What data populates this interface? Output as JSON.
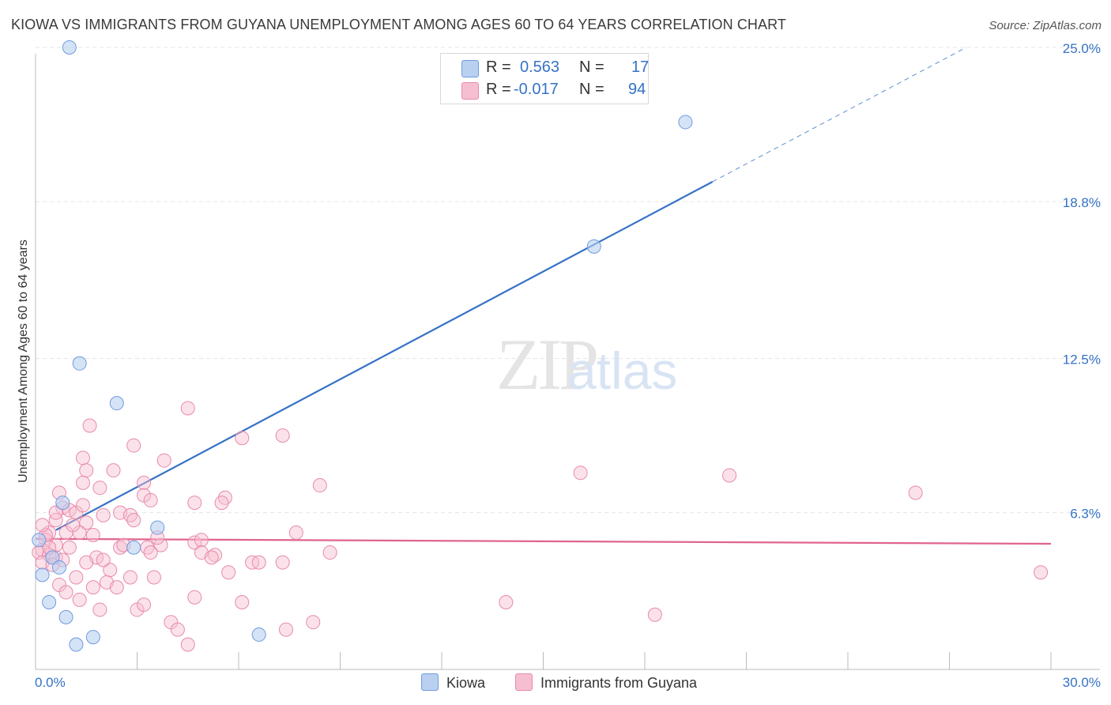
{
  "title": "KIOWA VS IMMIGRANTS FROM GUYANA UNEMPLOYMENT AMONG AGES 60 TO 64 YEARS CORRELATION CHART",
  "source": "Source: ZipAtlas.com",
  "watermark": {
    "zip": "ZIP",
    "atlas": "atlas"
  },
  "legend": {
    "r_label": "R =",
    "n_label": "N =",
    "series1": {
      "r": "0.563",
      "n": "17"
    },
    "series2": {
      "r": "-0.017",
      "n": "94"
    }
  },
  "colors": {
    "kiowa": "#3572c6",
    "kiowa_fill": "#b9d0f0",
    "guyana": "#e0648f",
    "guyana_fill": "#f6bfd1"
  },
  "chart_data": {
    "type": "scatter",
    "title": "KIOWA VS IMMIGRANTS FROM GUYANA UNEMPLOYMENT AMONG AGES 60 TO 64 YEARS CORRELATION CHART",
    "xlabel": "",
    "ylabel": "Unemployment Among Ages 60 to 64 years",
    "xlim": [
      0,
      30
    ],
    "ylim": [
      0,
      25.5
    ],
    "x_tick_labels": [
      "0.0%",
      "30.0%"
    ],
    "y_ticks": [
      6.3,
      12.5,
      18.8,
      25.0
    ],
    "y_tick_labels": [
      "6.3%",
      "12.5%",
      "18.8%",
      "25.0%"
    ],
    "grid": true,
    "series": [
      {
        "name": "Kiowa",
        "points": [
          [
            1.0,
            25.0
          ],
          [
            19.2,
            22.0
          ],
          [
            16.5,
            17.0
          ],
          [
            1.3,
            12.3
          ],
          [
            2.4,
            10.7
          ],
          [
            0.8,
            6.7
          ],
          [
            3.6,
            5.7
          ],
          [
            2.9,
            4.9
          ],
          [
            0.5,
            4.5
          ],
          [
            0.7,
            4.1
          ],
          [
            0.2,
            3.8
          ],
          [
            0.4,
            2.7
          ],
          [
            0.9,
            2.1
          ],
          [
            1.7,
            1.3
          ],
          [
            1.2,
            1.0
          ],
          [
            6.6,
            1.4
          ],
          [
            0.1,
            5.2
          ]
        ],
        "trend": {
          "x0": 0.6,
          "y0": 5.6,
          "x1": 20.0,
          "y1": 19.6,
          "dash_to_x": 27.5,
          "dash_to_y": 25.0
        }
      },
      {
        "name": "Immigrants from Guyana",
        "points": [
          [
            4.5,
            10.5
          ],
          [
            1.6,
            9.8
          ],
          [
            2.9,
            9.0
          ],
          [
            6.1,
            9.3
          ],
          [
            7.3,
            9.4
          ],
          [
            1.4,
            8.5
          ],
          [
            3.8,
            8.4
          ],
          [
            1.5,
            8.0
          ],
          [
            2.3,
            8.0
          ],
          [
            3.2,
            7.5
          ],
          [
            1.4,
            7.5
          ],
          [
            1.9,
            7.3
          ],
          [
            8.4,
            7.4
          ],
          [
            16.1,
            7.9
          ],
          [
            20.5,
            7.8
          ],
          [
            26.0,
            7.1
          ],
          [
            0.7,
            7.1
          ],
          [
            3.2,
            7.0
          ],
          [
            5.6,
            6.9
          ],
          [
            3.4,
            6.8
          ],
          [
            4.7,
            6.7
          ],
          [
            5.5,
            6.7
          ],
          [
            0.8,
            6.5
          ],
          [
            1.0,
            6.4
          ],
          [
            1.2,
            6.3
          ],
          [
            2.0,
            6.2
          ],
          [
            2.5,
            6.3
          ],
          [
            2.8,
            6.2
          ],
          [
            2.9,
            6.0
          ],
          [
            0.6,
            6.0
          ],
          [
            1.5,
            5.9
          ],
          [
            0.4,
            5.5
          ],
          [
            0.9,
            5.5
          ],
          [
            1.3,
            5.5
          ],
          [
            7.7,
            5.5
          ],
          [
            0.3,
            5.2
          ],
          [
            0.6,
            5.0
          ],
          [
            0.2,
            4.8
          ],
          [
            1.0,
            4.9
          ],
          [
            2.5,
            4.9
          ],
          [
            3.3,
            4.9
          ],
          [
            3.7,
            5.0
          ],
          [
            4.7,
            5.1
          ],
          [
            4.9,
            5.2
          ],
          [
            0.1,
            4.7
          ],
          [
            0.4,
            4.6
          ],
          [
            0.6,
            4.5
          ],
          [
            0.8,
            4.4
          ],
          [
            1.8,
            4.5
          ],
          [
            3.4,
            4.7
          ],
          [
            4.9,
            4.7
          ],
          [
            5.3,
            4.6
          ],
          [
            8.7,
            4.7
          ],
          [
            1.5,
            4.3
          ],
          [
            2.2,
            4.0
          ],
          [
            6.4,
            4.3
          ],
          [
            6.6,
            4.3
          ],
          [
            7.3,
            4.3
          ],
          [
            0.2,
            4.3
          ],
          [
            1.2,
            3.7
          ],
          [
            2.8,
            3.7
          ],
          [
            3.5,
            3.7
          ],
          [
            5.7,
            3.9
          ],
          [
            0.7,
            3.4
          ],
          [
            1.7,
            3.3
          ],
          [
            2.1,
            3.5
          ],
          [
            2.4,
            3.3
          ],
          [
            4.7,
            2.9
          ],
          [
            1.3,
            2.8
          ],
          [
            6.1,
            2.7
          ],
          [
            13.9,
            2.7
          ],
          [
            1.9,
            2.4
          ],
          [
            3.0,
            2.4
          ],
          [
            3.2,
            2.6
          ],
          [
            18.3,
            2.2
          ],
          [
            4.0,
            1.9
          ],
          [
            4.2,
            1.6
          ],
          [
            7.4,
            1.6
          ],
          [
            8.2,
            1.9
          ],
          [
            4.5,
            1.0
          ],
          [
            29.7,
            3.9
          ],
          [
            0.3,
            5.4
          ],
          [
            0.5,
            4.2
          ],
          [
            1.1,
            5.8
          ],
          [
            2.6,
            5.0
          ],
          [
            0.9,
            3.1
          ],
          [
            3.6,
            5.3
          ],
          [
            0.4,
            4.9
          ],
          [
            1.4,
            6.6
          ],
          [
            2.0,
            4.4
          ],
          [
            0.2,
            5.8
          ],
          [
            5.2,
            4.5
          ],
          [
            1.7,
            5.4
          ],
          [
            0.6,
            6.3
          ]
        ],
        "trend": {
          "x0": 0.0,
          "y0": 5.25,
          "x1": 30.0,
          "y1": 5.05
        }
      }
    ],
    "legend": [
      "Kiowa",
      "Immigrants from Guyana"
    ],
    "legend_position": "bottom-center"
  }
}
